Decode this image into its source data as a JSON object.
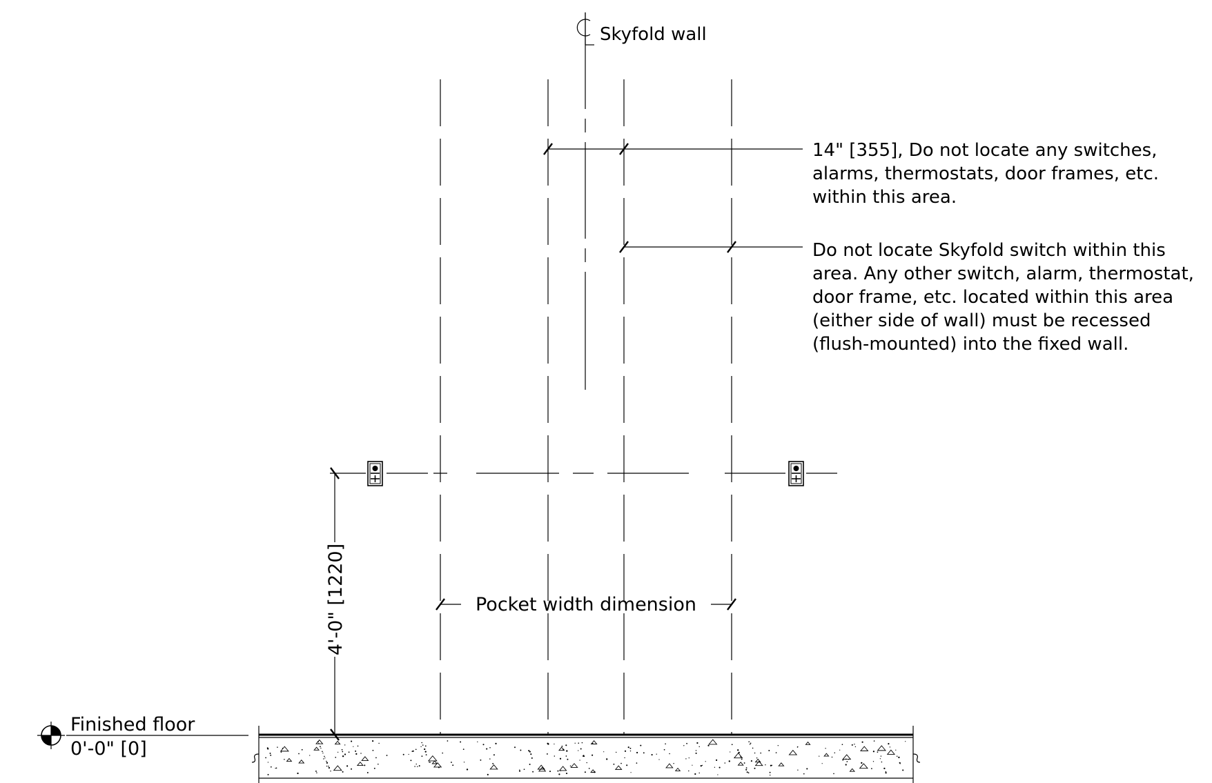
{
  "centerline": {
    "symbol": "CL",
    "label": "Skyfold wall"
  },
  "annotations": {
    "no_devices_zone": [
      "14\" [355], Do not locate any switches,",
      "alarms, thermostats, door frames, etc.",
      "within this area."
    ],
    "no_skyfold_switch_zone": [
      "Do not locate Skyfold switch within this",
      "area. Any other switch, alarm, thermostat,",
      "door frame, etc. located within this area",
      "(either side of wall) must be recessed",
      "(flush-mounted) into the fixed wall."
    ]
  },
  "dimensions": {
    "switch_height": "4'-0\" [1220]",
    "pocket_width": "Pocket width dimension"
  },
  "floor": {
    "label": "Finished floor",
    "elevation": "0'-0\" [0]"
  },
  "icons": {
    "switch_box": "switch-box-icon",
    "elevation_marker": "elevation-marker-icon",
    "centerline": "centerline-icon"
  }
}
